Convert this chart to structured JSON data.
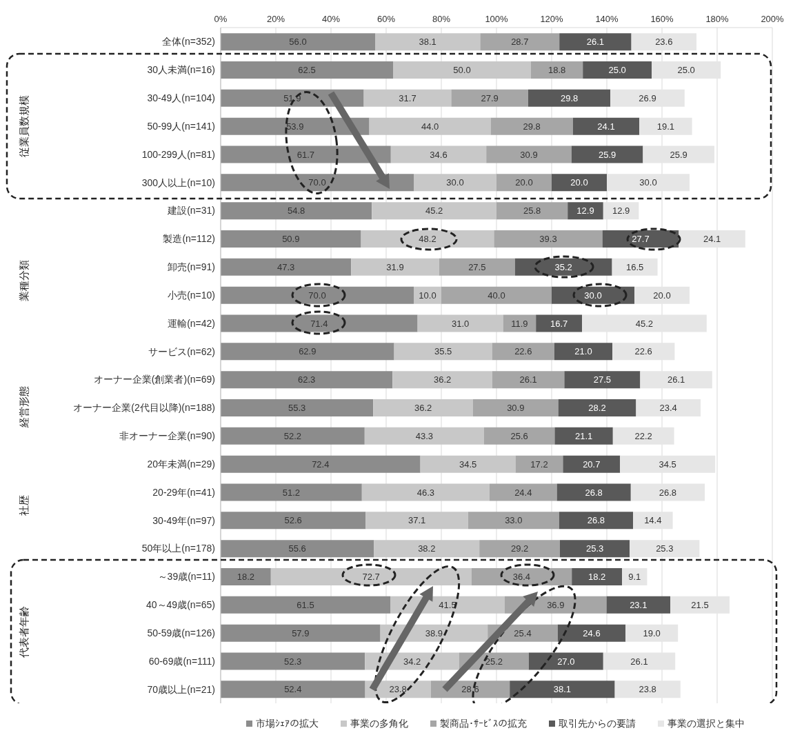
{
  "chart_data": {
    "type": "bar",
    "orientation": "horizontal",
    "stacked": true,
    "grid": "x",
    "legend": "bottom",
    "categories": [
      "全体(n=352)",
      "30人未満(n=16)",
      "30-49人(n=104)",
      "50-99人(n=141)",
      "100-299人(n=81)",
      "300人以上(n=10)",
      "建設(n=31)",
      "製造(n=112)",
      "卸売(n=91)",
      "小売(n=10)",
      "運輸(n=42)",
      "サービス(n=62)",
      "オーナー企業(創業者)(n=69)",
      "オーナー企業(2代目以降)(n=188)",
      "非オーナー企業(n=90)",
      "20年未満(n=29)",
      "20-29年(n=41)",
      "30-49年(n=97)",
      "50年以上(n=178)",
      "～39歳(n=11)",
      "40～49歳(n=65)",
      "50-59歳(n=126)",
      "60-69歳(n=111)",
      "70歳以上(n=21)"
    ],
    "series": [
      {
        "name": "市場ｼｪｱの拡大",
        "color": "#8c8c8c",
        "values": [
          56.0,
          62.5,
          51.9,
          53.9,
          61.7,
          70.0,
          54.8,
          50.9,
          47.3,
          70.0,
          71.4,
          62.9,
          62.3,
          55.3,
          52.2,
          72.4,
          51.2,
          52.6,
          55.6,
          18.2,
          61.5,
          57.9,
          52.3,
          52.4
        ],
        "value_labels": [
          "56.0",
          "62.5",
          "51.9",
          "53.9",
          "61.7",
          "70.0",
          "54.8",
          "50.9",
          "47.3",
          "70.0",
          "71.4",
          "62.9",
          "62.3",
          "55.3",
          "52.2",
          "72.4",
          "51.2",
          "52.6",
          "55.6",
          "18.2",
          "61.5",
          "57.9",
          "52.3",
          "52.4"
        ]
      },
      {
        "name": "事業の多角化",
        "color": "#c8c8c8",
        "values": [
          38.1,
          50.0,
          31.7,
          44.0,
          34.6,
          30.0,
          45.2,
          48.2,
          31.9,
          10.0,
          31.0,
          35.5,
          36.2,
          36.2,
          43.3,
          34.5,
          46.3,
          37.1,
          38.2,
          72.7,
          41.5,
          38.9,
          34.2,
          23.8
        ],
        "value_labels": [
          "38.1",
          "50.0",
          "31.7",
          "44.0",
          "34.6",
          "30.0",
          "45.2",
          "48.2",
          "31.9",
          "10.0",
          "31.0",
          "35.5",
          "36.2",
          "36.2",
          "43.3",
          "34.5",
          "46.3",
          "37.1",
          "38.2",
          "72.7",
          "41.5",
          "38.9",
          "34.2",
          "23.8"
        ]
      },
      {
        "name": "製商品･ｻｰﾋﾞｽの拡充",
        "color": "#a6a6a6",
        "values": [
          28.7,
          18.8,
          27.9,
          29.8,
          30.9,
          20.0,
          25.8,
          39.3,
          27.5,
          40.0,
          11.9,
          22.6,
          26.1,
          30.9,
          25.6,
          17.2,
          24.4,
          33.0,
          29.2,
          36.4,
          36.9,
          25.4,
          25.2,
          28.6
        ],
        "value_labels": [
          "28.7",
          "18.8",
          "27.9",
          "29.8",
          "30.9",
          "20.0",
          "25.8",
          "39.3",
          "27.5",
          "40.0",
          "11.9",
          "22.6",
          "26.1",
          "30.9",
          "25.6",
          "17.2",
          "24.4",
          "33.0",
          "29.2",
          "36.4",
          "36.9",
          "25.4",
          "25.2",
          "28.6"
        ]
      },
      {
        "name": "取引先からの要請",
        "color": "#595959",
        "values": [
          26.1,
          25.0,
          29.8,
          24.1,
          25.9,
          20.0,
          12.9,
          27.7,
          35.2,
          30.0,
          16.7,
          21.0,
          27.5,
          28.2,
          21.1,
          20.7,
          26.8,
          26.8,
          25.3,
          18.2,
          23.1,
          24.6,
          27.0,
          38.1
        ],
        "value_labels": [
          "26.1",
          "25.0",
          "29.8",
          "24.1",
          "25.9",
          "20.0",
          "12.9",
          "27.7",
          "35.2",
          "30.0",
          "16.7",
          "21.0",
          "27.5",
          "28.2",
          "21.1",
          "20.7",
          "26.8",
          "26.8",
          "25.3",
          "18.2",
          "23.1",
          "24.6",
          "27.0",
          "38.1"
        ]
      },
      {
        "name": "事業の選択と集中",
        "color": "#e6e6e6",
        "values": [
          23.6,
          25.0,
          26.9,
          19.1,
          25.9,
          30.0,
          12.9,
          24.1,
          16.5,
          20.0,
          45.2,
          22.6,
          26.1,
          23.4,
          22.2,
          34.5,
          26.8,
          14.4,
          25.3,
          9.1,
          21.5,
          19.0,
          26.1,
          23.8
        ],
        "value_labels": [
          "23.6",
          "25.0",
          "26.9",
          "19.1",
          "25.9",
          "30.0",
          "12.9",
          "24.1",
          "16.5",
          "20.0",
          "45.2",
          "22.6",
          "26.1",
          "23.4",
          "22.2",
          "34.5",
          "26.8",
          "14.4",
          "25.3",
          "9.1",
          "21.5",
          "19.0",
          "26.1",
          "23.8"
        ]
      }
    ],
    "xlim": [
      0,
      200
    ],
    "xticks": [
      {
        "value": 0,
        "label": "0%"
      },
      {
        "value": 20,
        "label": "20%"
      },
      {
        "value": 40,
        "label": "40%"
      },
      {
        "value": 60,
        "label": "60%"
      },
      {
        "value": 80,
        "label": "80%"
      },
      {
        "value": 100,
        "label": "100%"
      },
      {
        "value": 120,
        "label": "120%"
      },
      {
        "value": 140,
        "label": "140%"
      },
      {
        "value": 160,
        "label": "160%"
      },
      {
        "value": 180,
        "label": "180%"
      },
      {
        "value": 200,
        "label": "200%"
      }
    ],
    "annotations": [
      "従業員数規模",
      "業種分類",
      "経営形態",
      "社歴",
      "代表者年齢"
    ]
  }
}
